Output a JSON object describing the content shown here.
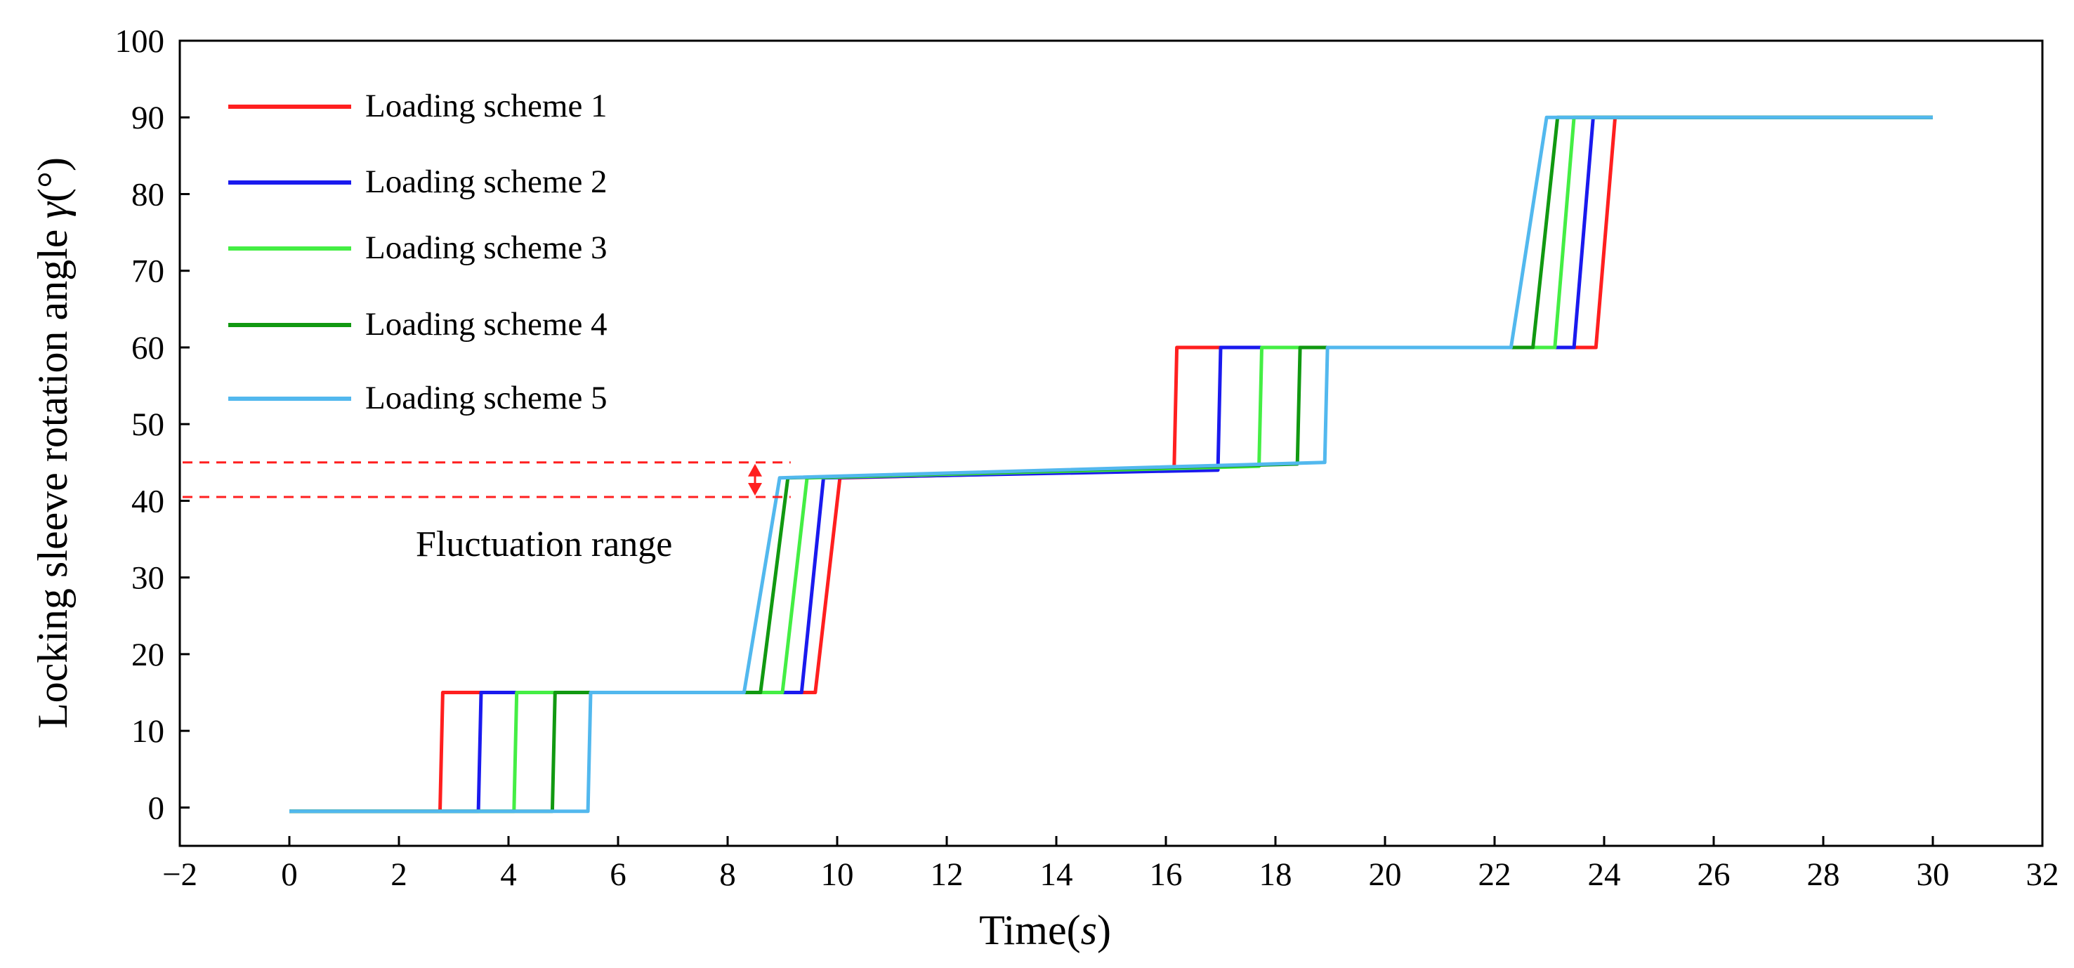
{
  "chart_data": {
    "type": "line",
    "title": "",
    "xlabel": "Time(s)",
    "xlabel_prefix": "Time(",
    "xlabel_unit": "s",
    "xlabel_suffix": ")",
    "ylabel": "Locking sleeve rotation angle γ(°)",
    "ylabel_main": "Locking sleeve rotation angle ",
    "ylabel_symbol": "γ",
    "ylabel_unit": "(°)",
    "xlim": [
      -2,
      32
    ],
    "ylim": [
      -5,
      100
    ],
    "xticks": [
      -2,
      0,
      2,
      4,
      6,
      8,
      10,
      12,
      14,
      16,
      18,
      20,
      22,
      24,
      26,
      28,
      30,
      32
    ],
    "yticks": [
      0,
      10,
      20,
      30,
      40,
      50,
      60,
      70,
      80,
      90,
      100
    ],
    "legend_position": "top-left",
    "series": [
      {
        "name": "Loading scheme 1",
        "color": "#ff1f1f",
        "x": [
          0,
          2.75,
          2.8,
          9.6,
          10.05,
          16.15,
          16.2,
          23.85,
          24.2,
          30
        ],
        "y": [
          -0.5,
          -0.5,
          15,
          15,
          43,
          44,
          60,
          60,
          90,
          90
        ]
      },
      {
        "name": "Loading scheme 2",
        "color": "#1a1aee",
        "x": [
          0,
          3.45,
          3.5,
          9.35,
          9.75,
          16.95,
          17.0,
          23.45,
          23.8,
          30
        ],
        "y": [
          -0.5,
          -0.5,
          15,
          15,
          43,
          44,
          60,
          60,
          90,
          90
        ]
      },
      {
        "name": "Loading scheme 3",
        "color": "#44ee44",
        "x": [
          0,
          4.1,
          4.15,
          9.0,
          9.45,
          17.7,
          17.75,
          23.1,
          23.45,
          30
        ],
        "y": [
          -0.5,
          -0.5,
          15,
          15,
          43,
          44.5,
          60,
          60,
          90,
          90
        ]
      },
      {
        "name": "Loading scheme 4",
        "color": "#119911",
        "x": [
          0,
          4.8,
          4.85,
          8.6,
          9.1,
          18.4,
          18.45,
          22.7,
          23.15,
          30
        ],
        "y": [
          -0.5,
          -0.5,
          15,
          15,
          43,
          44.8,
          60,
          60,
          90,
          90
        ]
      },
      {
        "name": "Loading scheme 5",
        "color": "#52b8ee",
        "x": [
          0,
          5.45,
          5.5,
          8.3,
          8.95,
          18.9,
          18.95,
          22.3,
          22.95,
          30
        ],
        "y": [
          -0.5,
          -0.5,
          15,
          15,
          43,
          45,
          60,
          60,
          90,
          90
        ]
      }
    ],
    "annotations": [
      {
        "text": "Fluctuation range",
        "range_y": [
          40.5,
          45
        ],
        "line_color": "#ff1f1f",
        "line_style": "dashed"
      }
    ]
  }
}
